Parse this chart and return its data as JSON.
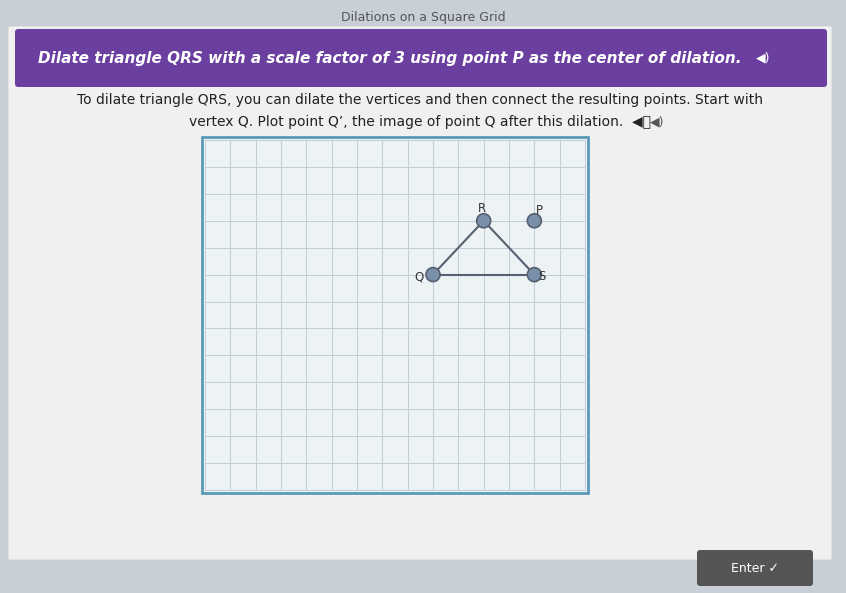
{
  "subtitle_top": "Dilations on a Square Grid",
  "title_bar_text": "Dilate triangle QRS with a scale factor of 3 using point P as the center of dilation.",
  "body_text_line1": "To dilate triangle QRS, you can dilate the vertices and then connect the resulting points. Start with",
  "body_text_line2": "vertex Q. Plot point Q’, the image of point Q after this dilation.  ◀⧳",
  "title_bar_color": "#6b3fa0",
  "title_bar_text_color": "#ffffff",
  "page_bg_color": "#c8cfd6",
  "content_bg_color": "#e8e8e8",
  "grid_bg_color": "#edf2f5",
  "grid_line_color": "#c0cdd6",
  "grid_border_color": "#5a9ab8",
  "point_color": "#7a8faa",
  "point_edge_color": "#556070",
  "triangle_line_color": "#556070",
  "P": [
    13,
    10
  ],
  "Q": [
    9,
    8
  ],
  "R": [
    11,
    10
  ],
  "S": [
    13,
    8
  ],
  "grid_cols": 15,
  "grid_rows": 13,
  "enter_btn_color": "#555555",
  "enter_btn_text_color": "#ffffff"
}
